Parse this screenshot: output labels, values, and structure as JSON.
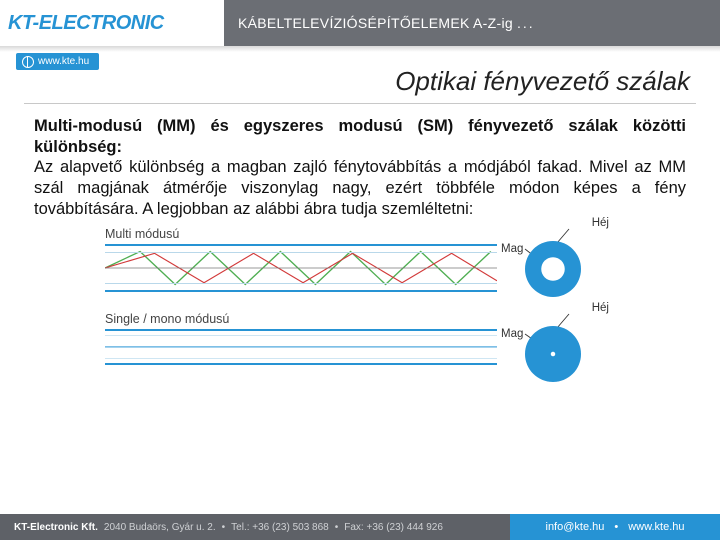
{
  "header": {
    "logo": "KT-ELECTRONIC",
    "tagline_prefix": "KÁBELTELEVÍZIÓS ",
    "tagline_light": "ÉPÍTŐELEMEK A-Z-ig",
    "dots": "...",
    "url": "www.kte.hu"
  },
  "title": "Optikai fényvezető szálak",
  "content": {
    "lead": "Multi-modusú (MM) és egyszeres modusú (SM) fényvezető szálak közötti különbség:",
    "body": "Az alapvető különbség a magban zajló fénytovábbítás a módjából fakad. Mivel az MM szál magjának átmérője viszonylag nagy, ezért többféle módon képes a fény továbbítására. A legjobban az alábbi ábra tudja szemléltetni:"
  },
  "figure": {
    "mm_label": "Multi módusú",
    "sm_label": "Single / mono módusú",
    "hej": "Héj",
    "mag": "Mag",
    "colors": {
      "blue": "#2693d4",
      "green": "#4fae52",
      "red": "#d23a3a"
    },
    "mm_core_ratio": 0.42,
    "sm_core_ratio": 0.08
  },
  "footer": {
    "company": "KT-Electronic Kft.",
    "address": "2040 Budaörs, Gyár u. 2.",
    "tel": "Tel.: +36 (23) 503 868",
    "fax": "Fax: +36 (23) 444 926",
    "email": "info@kte.hu",
    "web": "www.kte.hu"
  }
}
